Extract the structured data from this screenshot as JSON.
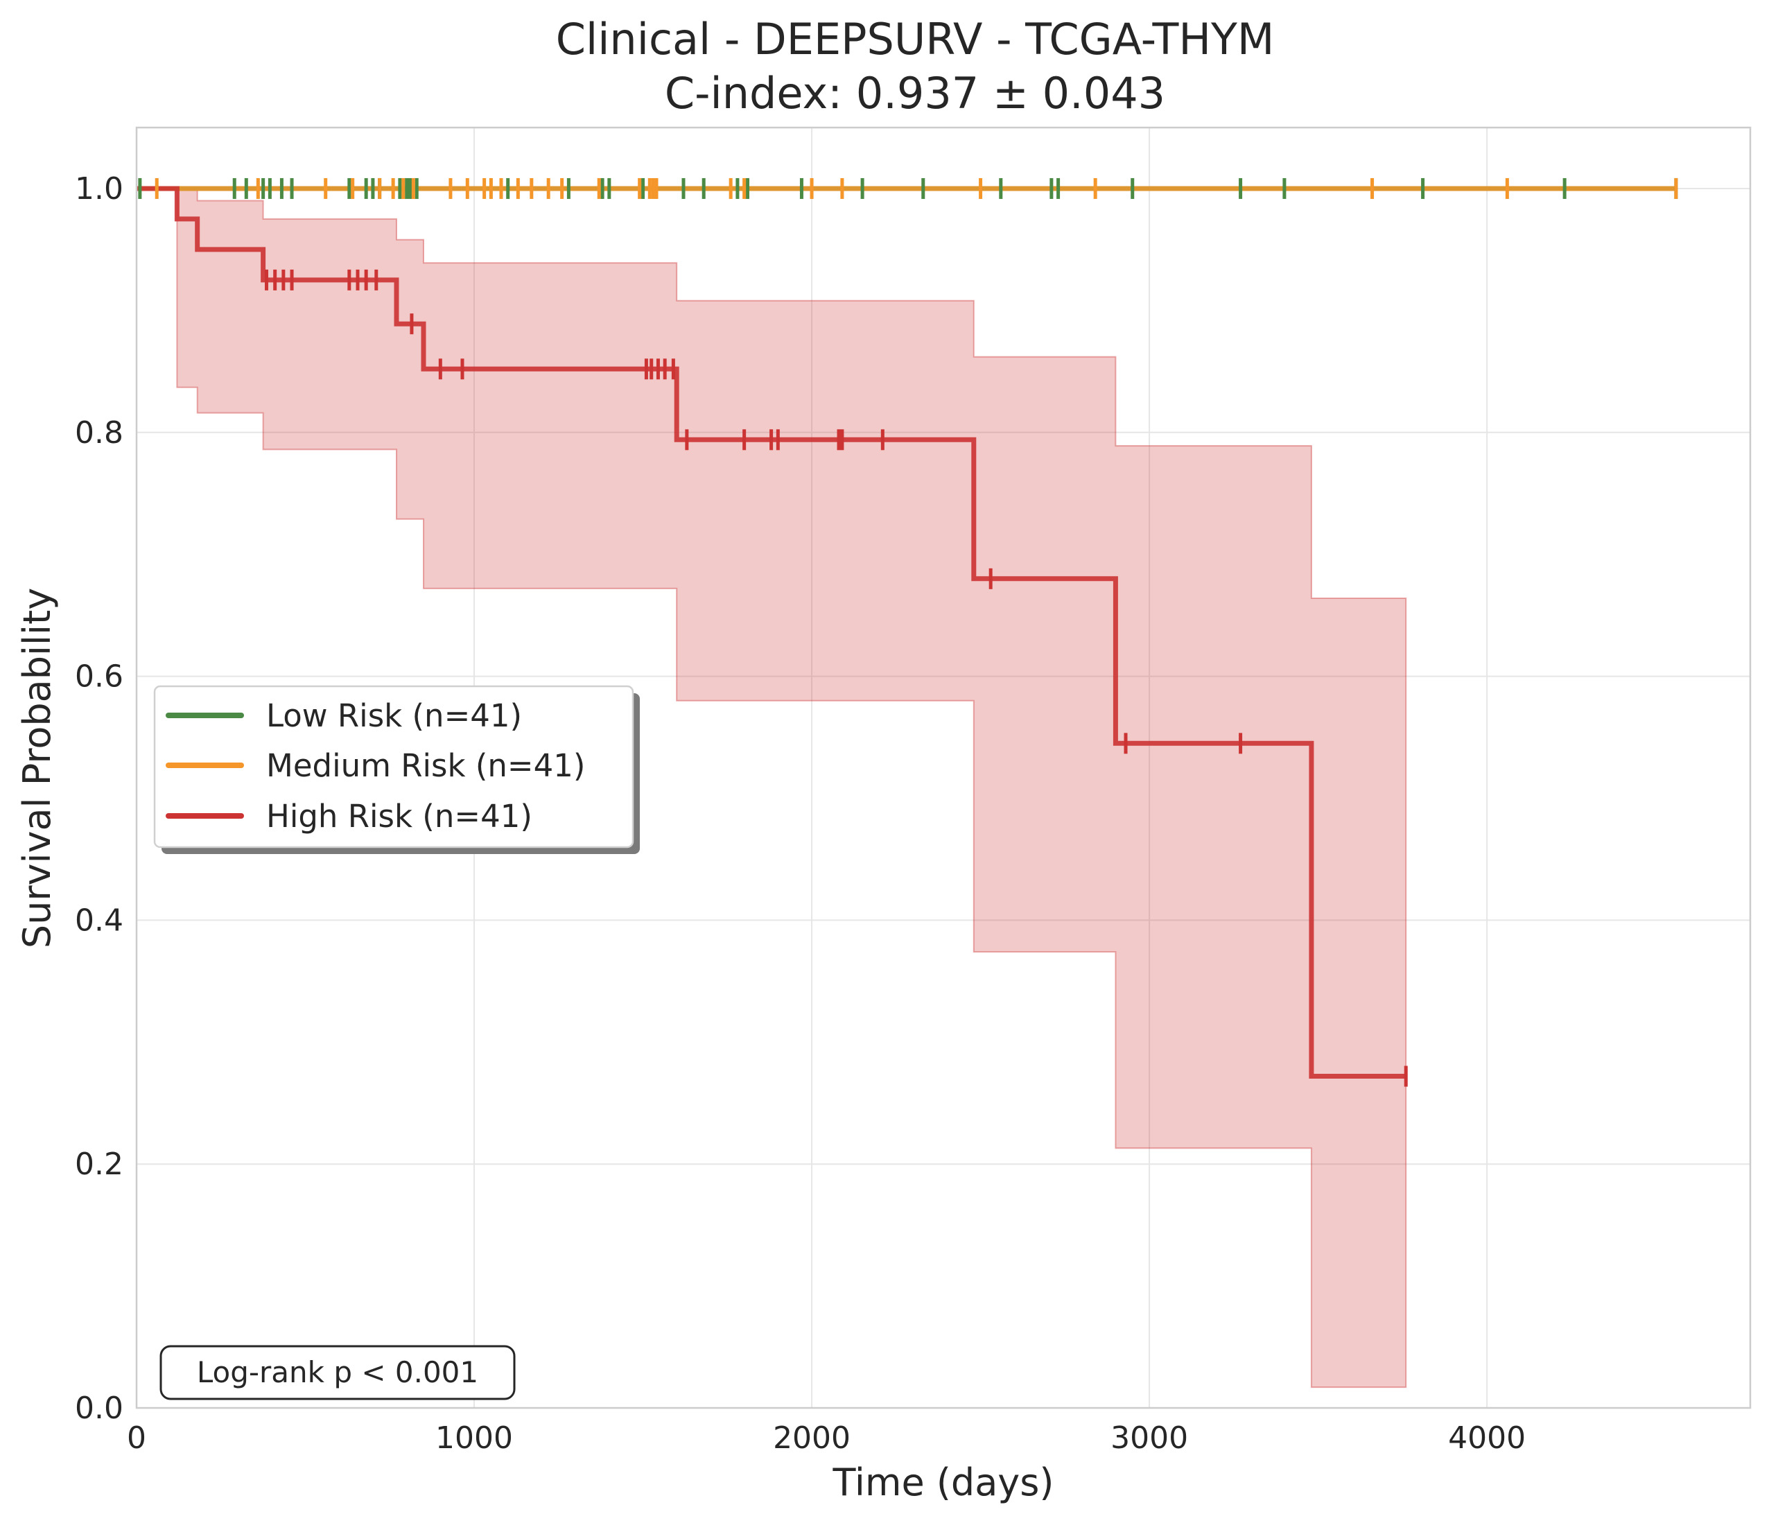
{
  "chart_data": {
    "type": "line",
    "subtype": "kaplan-meier",
    "title": "Clinical - DEEPSURV - TCGA-THYM",
    "subtitle": "C-index: 0.937 ± 0.043",
    "xlabel": "Time (days)",
    "ylabel": "Survival Probability",
    "xlim": [
      0,
      4780
    ],
    "ylim": [
      0,
      1.05
    ],
    "x_ticks": [
      0,
      1000,
      2000,
      3000,
      4000
    ],
    "x_tick_labels": [
      "0",
      "1000",
      "2000",
      "3000",
      "4000"
    ],
    "y_ticks": [
      0,
      0.2,
      0.4,
      0.6,
      0.8,
      1.0
    ],
    "y_tick_labels": [
      "0.0",
      "0.2",
      "0.4",
      "0.6",
      "0.8",
      "1.0"
    ],
    "grid": true,
    "legend_position": "center-left",
    "annotation": "Log-rank p < 0.001",
    "series": [
      {
        "name": "Low Risk (n=41)",
        "color": "#4a8a45",
        "steps": [
          [
            0,
            1.0
          ],
          [
            4560,
            1.0
          ]
        ],
        "censor_times": [
          10,
          290,
          325,
          375,
          395,
          430,
          460,
          630,
          680,
          700,
          720,
          780,
          800,
          810,
          830,
          1100,
          1280,
          1380,
          1400,
          1500,
          1620,
          1680,
          1780,
          1810,
          1970,
          2150,
          2330,
          2560,
          2710,
          2730,
          2950,
          3270,
          3400,
          3810,
          4230,
          4560
        ]
      },
      {
        "name": "Medium Risk (n=41)",
        "color": "#f5962a",
        "steps": [
          [
            0,
            1.0
          ],
          [
            4560,
            1.0
          ]
        ],
        "censor_times": [
          60,
          360,
          560,
          640,
          720,
          760,
          790,
          820,
          930,
          980,
          1030,
          1050,
          1080,
          1130,
          1170,
          1220,
          1260,
          1370,
          1490,
          1520,
          1530,
          1540,
          1760,
          1800,
          2000,
          2090,
          2500,
          2840,
          3660,
          4060,
          4560
        ]
      },
      {
        "name": "High Risk (n=41)",
        "color": "#cc3333",
        "steps": [
          [
            0,
            1.0
          ],
          [
            120,
            0.975
          ],
          [
            180,
            0.95
          ],
          [
            375,
            0.925
          ],
          [
            770,
            0.889
          ],
          [
            850,
            0.852
          ],
          [
            1600,
            0.794
          ],
          [
            2480,
            0.68
          ],
          [
            2900,
            0.545
          ],
          [
            3480,
            0.272
          ],
          [
            3760,
            0.272
          ]
        ],
        "ci_upper": [
          [
            0,
            1.0
          ],
          [
            120,
            1.0
          ],
          [
            180,
            0.99
          ],
          [
            375,
            0.975
          ],
          [
            770,
            0.958
          ],
          [
            850,
            0.939
          ],
          [
            1600,
            0.908
          ],
          [
            2480,
            0.862
          ],
          [
            2900,
            0.789
          ],
          [
            3480,
            0.664
          ],
          [
            3760,
            0.664
          ]
        ],
        "ci_lower": [
          [
            0,
            1.0
          ],
          [
            120,
            0.837
          ],
          [
            180,
            0.816
          ],
          [
            375,
            0.786
          ],
          [
            770,
            0.729
          ],
          [
            850,
            0.672
          ],
          [
            1600,
            0.58
          ],
          [
            2480,
            0.374
          ],
          [
            2900,
            0.213
          ],
          [
            3480,
            0.017
          ],
          [
            3760,
            0.017
          ]
        ],
        "censor_times": [
          385,
          410,
          435,
          460,
          630,
          655,
          680,
          710,
          815,
          900,
          965,
          1510,
          1525,
          1545,
          1565,
          1590,
          1630,
          1800,
          1880,
          1900,
          2080,
          2090,
          2210,
          2530,
          2930,
          3270,
          3760
        ]
      }
    ]
  }
}
